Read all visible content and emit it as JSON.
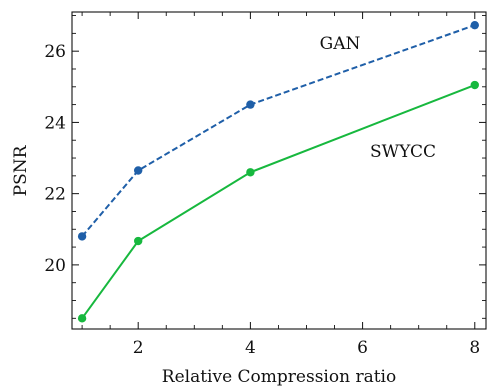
{
  "chart_data": {
    "type": "line",
    "xlabel": "Relative Compression ratio",
    "ylabel": "PSNR",
    "xlim": [
      0.82,
      8.2
    ],
    "ylim": [
      18.2,
      27.1
    ],
    "x_ticks": [
      2,
      4,
      6,
      8
    ],
    "y_ticks": [
      20,
      22,
      24,
      26
    ],
    "x_tick_labels": [
      "2",
      "4",
      "6",
      "8"
    ],
    "y_tick_labels": [
      "20",
      "22",
      "24",
      "26"
    ],
    "grid": false,
    "series": [
      {
        "name": "GAN",
        "x": [
          1,
          2,
          4,
          8
        ],
        "y": [
          20.8,
          22.65,
          24.5,
          26.73
        ],
        "color": "#1f5fa8",
        "line_style": "dashed",
        "marker": "circle"
      },
      {
        "name": "SWYCC",
        "x": [
          1,
          2,
          4,
          8
        ],
        "y": [
          18.5,
          20.67,
          22.6,
          25.05
        ],
        "color": "#17b83e",
        "line_style": "solid",
        "marker": "circle"
      }
    ]
  }
}
